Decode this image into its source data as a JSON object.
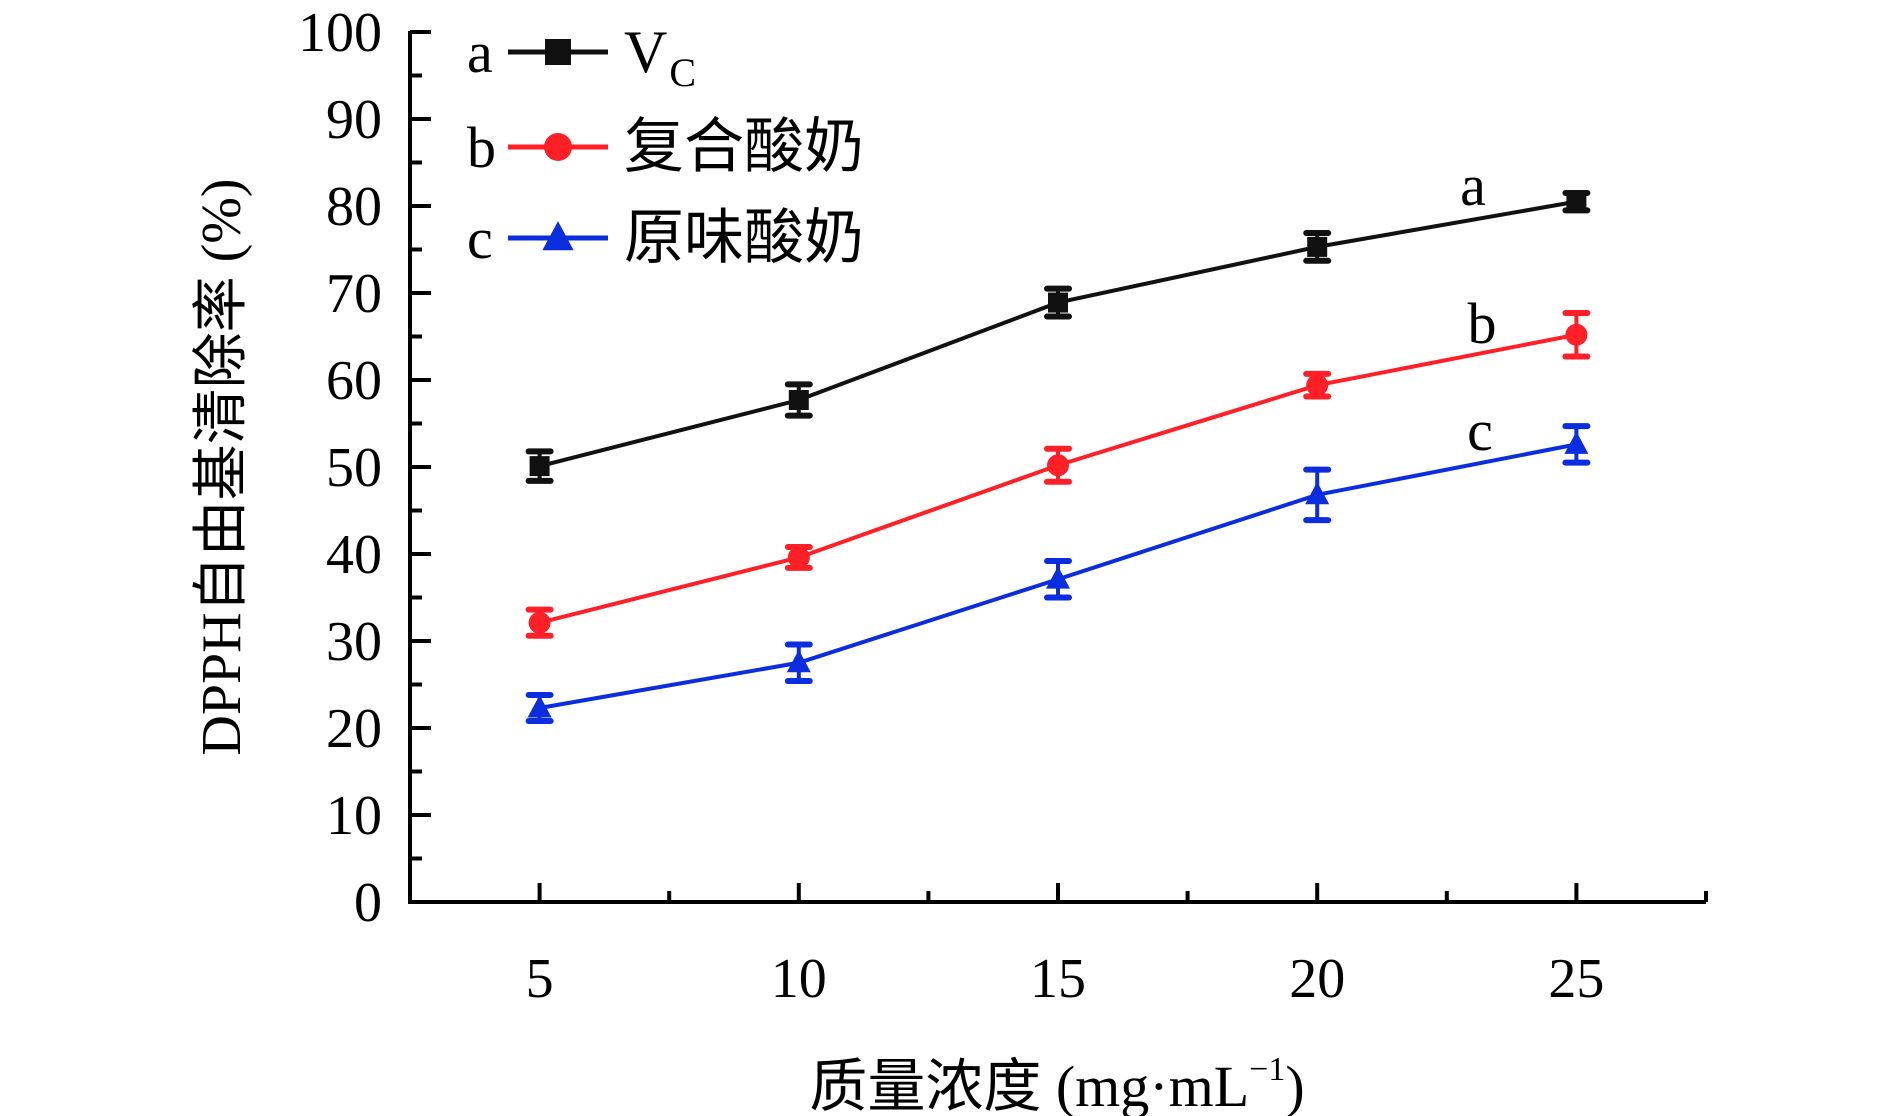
{
  "chart_data": {
    "type": "line",
    "title": "",
    "xlabel": "质量浓度 (mg·mL",
    "xlabel_superscript": "−1",
    "xlabel_close": ")",
    "ylabel": "DPPH自由基清除率 (%)",
    "xlim": [
      2.5,
      27.5
    ],
    "ylim": [
      0,
      100
    ],
    "grid": false,
    "x": [
      5,
      10,
      15,
      20,
      25
    ],
    "x_ticks": [
      5,
      10,
      15,
      20,
      25
    ],
    "x_tick_labels": [
      "5",
      "10",
      "15",
      "20",
      "25"
    ],
    "x_minor_ticks": [
      7.5,
      12.5,
      17.5,
      22.5,
      27.5
    ],
    "y_ticks": [
      0,
      10,
      20,
      30,
      40,
      50,
      60,
      70,
      80,
      90,
      100
    ],
    "y_tick_labels": [
      "0",
      "10",
      "20",
      "30",
      "40",
      "50",
      "60",
      "70",
      "80",
      "90",
      "100"
    ],
    "y_minor_ticks": [
      5,
      15,
      25,
      35,
      45,
      55,
      65,
      75,
      85,
      95
    ],
    "legend_position": "top-left",
    "series": [
      {
        "id": "a",
        "letter": "a",
        "name": "V",
        "name_subscript": "C",
        "marker": "square",
        "color": "#111111",
        "values": [
          50.1,
          57.7,
          68.9,
          75.3,
          80.5
        ],
        "errors": [
          1.7,
          1.8,
          1.6,
          1.6,
          1.0
        ]
      },
      {
        "id": "b",
        "letter": "b",
        "name": "复合酸奶",
        "name_subscript": "",
        "marker": "circle",
        "color": "#ff1f26",
        "values": [
          32.1,
          39.6,
          50.2,
          59.4,
          65.2
        ],
        "errors": [
          1.5,
          1.2,
          1.9,
          1.3,
          2.5
        ]
      },
      {
        "id": "c",
        "letter": "c",
        "name": "原味酸奶",
        "name_subscript": "",
        "marker": "triangle",
        "color": "#0b2de0",
        "values": [
          22.3,
          27.5,
          37.1,
          46.8,
          52.6
        ],
        "errors": [
          1.5,
          2.1,
          2.1,
          2.9,
          2.1
        ]
      }
    ],
    "annotations": [
      "a",
      "b",
      "c"
    ]
  }
}
